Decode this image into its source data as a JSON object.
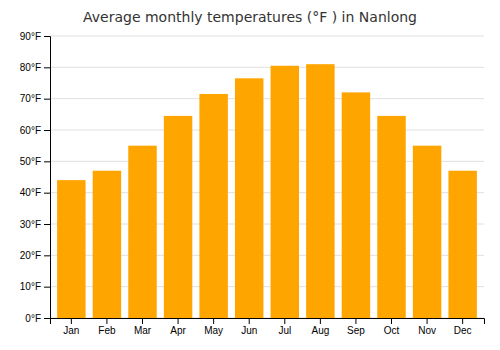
{
  "chart_data": {
    "type": "bar",
    "title": "Average monthly temperatures (°F ) in Nanlong",
    "categories": [
      "Jan",
      "Feb",
      "Mar",
      "Apr",
      "May",
      "Jun",
      "Jul",
      "Aug",
      "Sep",
      "Oct",
      "Nov",
      "Dec"
    ],
    "values": [
      44,
      47,
      55,
      64.5,
      71.5,
      76.5,
      80.5,
      81,
      72,
      64.5,
      55,
      47
    ],
    "color": "#FFA500",
    "ylim": [
      0,
      90
    ],
    "yticks": [
      {
        "value": 0,
        "label": "0°F"
      },
      {
        "value": 10,
        "label": "10°F"
      },
      {
        "value": 20,
        "label": "20°F"
      },
      {
        "value": 30,
        "label": "30°F"
      },
      {
        "value": 40,
        "label": "40°F"
      },
      {
        "value": 50,
        "label": "50°F"
      },
      {
        "value": 60,
        "label": "60°F"
      },
      {
        "value": 70,
        "label": "70°F"
      },
      {
        "value": 80,
        "label": "80°F"
      },
      {
        "value": 90,
        "label": "90°F"
      }
    ],
    "grid": true
  }
}
